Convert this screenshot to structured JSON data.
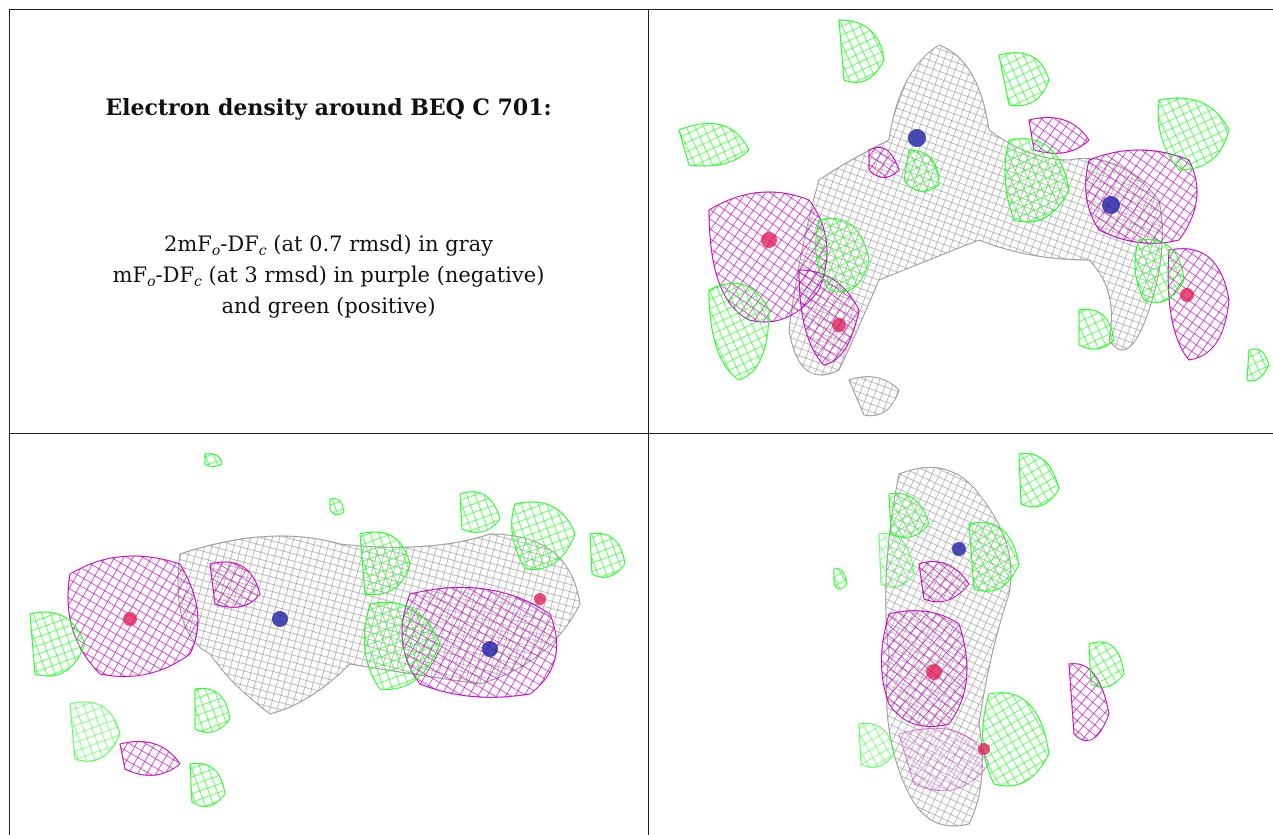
{
  "caption": {
    "title": "Electron density around BEQ C 701:",
    "line1": {
      "prefix": "2mF",
      "sub1": "o",
      "mid": "-DF",
      "sub2": "c",
      "suffix": " (at 0.7 rmsd) in gray"
    },
    "line2": {
      "prefix": "mF",
      "sub1": "o",
      "mid": "-DF",
      "sub2": "c",
      "suffix": " (at 3 rmsd) in purple (negative)"
    },
    "line3": "and green (positive)"
  },
  "colors": {
    "gray_mesh": "#9a9a9a",
    "purple_mesh": "#c000c0",
    "green_mesh": "#1aff1a",
    "atom_blue": "#2a2aa8",
    "atom_red": "#e0205a",
    "border": "#222222"
  },
  "panels": [
    {
      "id": "view-top-right"
    },
    {
      "id": "view-bottom-left"
    },
    {
      "id": "view-bottom-right"
    }
  ]
}
